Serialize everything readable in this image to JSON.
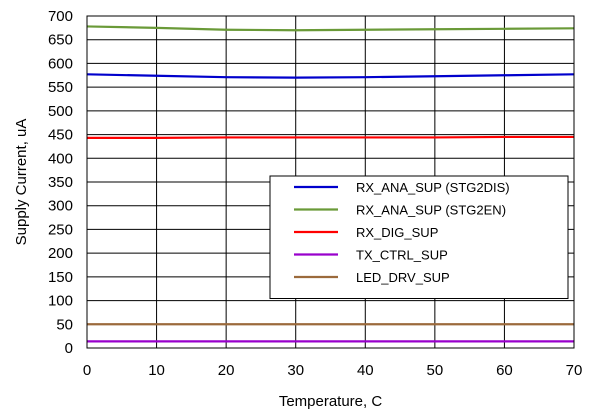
{
  "chart_data": {
    "type": "line",
    "xlabel": "Temperature, C",
    "ylabel": "Supply Current, uA",
    "xlim": [
      0,
      70
    ],
    "ylim": [
      0,
      700
    ],
    "xticks": [
      "0",
      "10",
      "20",
      "30",
      "40",
      "50",
      "60",
      "70"
    ],
    "yticks": [
      "0",
      "50",
      "100",
      "150",
      "200",
      "250",
      "300",
      "350",
      "400",
      "450",
      "500",
      "550",
      "600",
      "650",
      "700"
    ],
    "grid": true,
    "legend_position": "center-right",
    "x": [
      0,
      10,
      20,
      30,
      40,
      50,
      60,
      70
    ],
    "series": [
      {
        "name": "RX_ANA_SUP (STG2DIS)",
        "color": "#0000cc",
        "values": [
          577,
          574,
          571,
          570,
          571,
          573,
          575,
          577
        ]
      },
      {
        "name": "RX_ANA_SUP (STG2EN)",
        "color": "#6a9a38",
        "values": [
          678,
          675,
          671,
          670,
          671,
          672,
          673,
          674
        ]
      },
      {
        "name": "RX_DIG_SUP",
        "color": "#ff0000",
        "values": [
          443,
          443,
          444,
          444,
          444,
          444,
          445,
          445
        ]
      },
      {
        "name": "TX_CTRL_SUP",
        "color": "#9900cc",
        "values": [
          14,
          14,
          14,
          14,
          14,
          14,
          14,
          14
        ]
      },
      {
        "name": "LED_DRV_SUP",
        "color": "#9b6a3c",
        "values": [
          50,
          50,
          50,
          50,
          50,
          50,
          50,
          50
        ]
      }
    ]
  }
}
